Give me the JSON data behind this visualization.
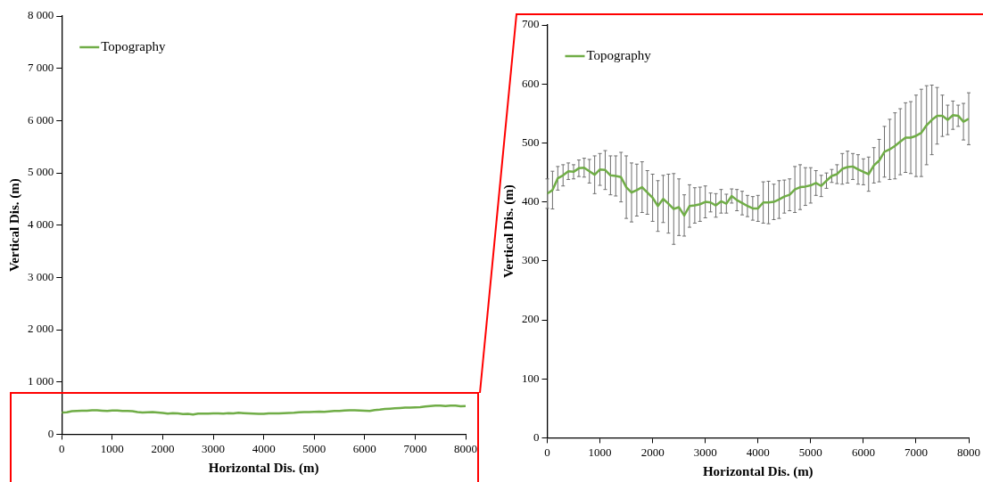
{
  "chart_data": [
    {
      "type": "line",
      "xlabel": "Horizontal Dis. (m)",
      "ylabel": "Vertical Dis. (m)",
      "legend": "top left",
      "grid": false,
      "marker": "none",
      "xlim": [
        0,
        8000
      ],
      "xticks": [
        0,
        1000,
        2000,
        3000,
        4000,
        5000,
        6000,
        7000,
        8000
      ],
      "ylim": [
        0,
        8000
      ],
      "yticks": [
        0,
        {
          "value": 1000,
          "label": "1 000"
        },
        {
          "value": 2000,
          "label": "2 000"
        },
        {
          "value": 3000,
          "label": "3 000"
        },
        {
          "value": 4000,
          "label": "4 000"
        },
        {
          "value": 5000,
          "label": "5 000"
        },
        {
          "value": 6000,
          "label": "6 000"
        },
        {
          "value": 7000,
          "label": "7 000"
        },
        {
          "value": 8000,
          "label": "8 000"
        }
      ],
      "x": [
        0,
        100,
        200,
        300,
        400,
        500,
        600,
        700,
        800,
        900,
        1000,
        1100,
        1200,
        1300,
        1400,
        1500,
        1600,
        1700,
        1800,
        1900,
        2000,
        2100,
        2200,
        2300,
        2400,
        2500,
        2600,
        2700,
        2800,
        2900,
        3000,
        3100,
        3200,
        3300,
        3400,
        3500,
        3600,
        3700,
        3800,
        3900,
        4000,
        4100,
        4200,
        4300,
        4400,
        4500,
        4600,
        4700,
        4800,
        4900,
        5000,
        5100,
        5200,
        5300,
        5400,
        5500,
        5600,
        5700,
        5800,
        5900,
        6000,
        6100,
        6200,
        6300,
        6400,
        6500,
        6600,
        6700,
        6800,
        6900,
        7000,
        7100,
        7200,
        7300,
        7400,
        7500,
        7600,
        7700,
        7800,
        7900,
        8000
      ],
      "series": [
        {
          "name": "Topography",
          "color": "#70ad47",
          "values": [
            414,
            420,
            440,
            445,
            452,
            451,
            457,
            458,
            452,
            446,
            455,
            454,
            445,
            444,
            442,
            425,
            416,
            420,
            425,
            416,
            407,
            393,
            405,
            397,
            388,
            391,
            377,
            393,
            394,
            396,
            400,
            399,
            394,
            401,
            397,
            410,
            403,
            398,
            393,
            389,
            389,
            399,
            399,
            400,
            404,
            409,
            412,
            421,
            425,
            426,
            428,
            432,
            427,
            436,
            444,
            447,
            456,
            459,
            460,
            455,
            451,
            447,
            462,
            470,
            485,
            489,
            495,
            502,
            509,
            509,
            512,
            517,
            530,
            539,
            546,
            546,
            539,
            547,
            546,
            536,
            541
          ]
        }
      ]
    },
    {
      "type": "line",
      "xlabel": "Horizontal Dis. (m)",
      "ylabel": "Vertical Dis. (m)",
      "legend": "top left",
      "grid": false,
      "marker": "none",
      "xlim": [
        0,
        8000
      ],
      "xticks": [
        0,
        1000,
        2000,
        3000,
        4000,
        5000,
        6000,
        7000,
        8000
      ],
      "ylim": [
        0,
        700
      ],
      "yticks": [
        0,
        100,
        200,
        300,
        400,
        500,
        600,
        700
      ],
      "x": [
        0,
        100,
        200,
        300,
        400,
        500,
        600,
        700,
        800,
        900,
        1000,
        1100,
        1200,
        1300,
        1400,
        1500,
        1600,
        1700,
        1800,
        1900,
        2000,
        2100,
        2200,
        2300,
        2400,
        2500,
        2600,
        2700,
        2800,
        2900,
        3000,
        3100,
        3200,
        3300,
        3400,
        3500,
        3600,
        3700,
        3800,
        3900,
        4000,
        4100,
        4200,
        4300,
        4400,
        4500,
        4600,
        4700,
        4800,
        4900,
        5000,
        5100,
        5200,
        5300,
        5400,
        5500,
        5600,
        5700,
        5800,
        5900,
        6000,
        6100,
        6200,
        6300,
        6400,
        6500,
        6600,
        6700,
        6800,
        6900,
        7000,
        7100,
        7200,
        7300,
        7400,
        7500,
        7600,
        7700,
        7800,
        7900,
        8000
      ],
      "series": [
        {
          "name": "Topography",
          "color": "#70ad47",
          "values": [
            414,
            420,
            440,
            445,
            452,
            451,
            457,
            458,
            452,
            446,
            455,
            454,
            445,
            444,
            442,
            425,
            416,
            420,
            425,
            416,
            407,
            393,
            405,
            397,
            388,
            391,
            377,
            393,
            394,
            396,
            400,
            399,
            394,
            401,
            397,
            410,
            403,
            398,
            393,
            389,
            389,
            399,
            399,
            400,
            404,
            409,
            412,
            421,
            425,
            426,
            428,
            432,
            427,
            436,
            444,
            447,
            456,
            459,
            460,
            455,
            451,
            447,
            462,
            470,
            485,
            489,
            495,
            502,
            509,
            509,
            512,
            517,
            530,
            539,
            546,
            546,
            539,
            547,
            546,
            536,
            541
          ],
          "errors": [
            25,
            32,
            20,
            18,
            14,
            12,
            14,
            16,
            20,
            32,
            27,
            33,
            33,
            34,
            42,
            53,
            50,
            44,
            43,
            37,
            40,
            43,
            40,
            50,
            60,
            48,
            35,
            36,
            30,
            29,
            27,
            16,
            20,
            20,
            16,
            12,
            18,
            20,
            18,
            20,
            22,
            35,
            36,
            30,
            32,
            28,
            27,
            39,
            38,
            32,
            30,
            21,
            18,
            13,
            11,
            16,
            26,
            27,
            22,
            25,
            22,
            29,
            30,
            36,
            43,
            51,
            56,
            56,
            59,
            61,
            69,
            74,
            67,
            59,
            48,
            35,
            25,
            24,
            18,
            31,
            44
          ]
        }
      ]
    }
  ]
}
